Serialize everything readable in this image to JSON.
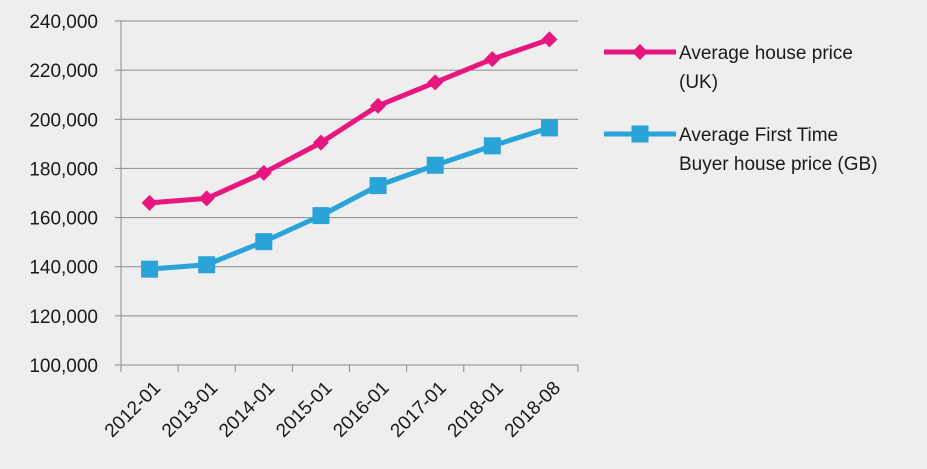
{
  "chart_data": {
    "type": "line",
    "title": "",
    "xlabel": "",
    "ylabel": "",
    "categories": [
      "2012-01",
      "2013-01",
      "2014-01",
      "2015-01",
      "2016-01",
      "2017-01",
      "2018-01",
      "2018-08"
    ],
    "ylim": [
      100000,
      240000
    ],
    "y_ticks": [
      {
        "value": 100000,
        "label": "100,000"
      },
      {
        "value": 120000,
        "label": "120,000"
      },
      {
        "value": 140000,
        "label": "140,000"
      },
      {
        "value": 160000,
        "label": "160,000"
      },
      {
        "value": 180000,
        "label": "180,000"
      },
      {
        "value": 200000,
        "label": "200,000"
      },
      {
        "value": 220000,
        "label": "220,000"
      },
      {
        "value": 240000,
        "label": "240,000"
      }
    ],
    "grid": "horizontal",
    "legend_position": "right",
    "series": [
      {
        "name": "Average house price (UK)",
        "legend_lines": [
          "Average house price",
          "(UK)"
        ],
        "color": "#e6177e",
        "marker": "diamond",
        "values": [
          166000,
          167800,
          178200,
          190500,
          205500,
          215000,
          224500,
          232500
        ]
      },
      {
        "name": "Average First Time Buyer house price (GB)",
        "legend_lines": [
          "Average First Time",
          "Buyer house price (GB)"
        ],
        "color": "#2aa3d9",
        "marker": "square",
        "values": [
          139000,
          140800,
          150200,
          160800,
          173000,
          181300,
          189200,
          196500
        ]
      }
    ]
  }
}
